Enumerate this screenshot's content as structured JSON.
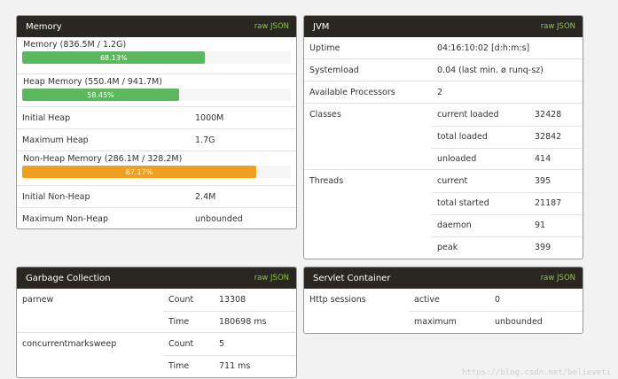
{
  "memory": {
    "title": "Memory",
    "raw": "raw JSON",
    "mem_label": "Memory (836.5M / 1.2G)",
    "mem_pct_text": "68.13%",
    "mem_pct": 68.13,
    "heap_label": "Heap Memory (550.4M / 941.7M)",
    "heap_pct_text": "58.45%",
    "heap_pct": 58.45,
    "initial_heap_label": "Initial Heap",
    "initial_heap": "1000M",
    "max_heap_label": "Maximum Heap",
    "max_heap": "1.7G",
    "nonheap_label": "Non-Heap Memory (286.1M / 328.2M)",
    "nonheap_pct_text": "87.17%",
    "nonheap_pct": 87.17,
    "initial_nonheap_label": "Initial Non-Heap",
    "initial_nonheap": "2.4M",
    "max_nonheap_label": "Maximum Non-Heap",
    "max_nonheap": "unbounded"
  },
  "jvm": {
    "title": "JVM",
    "raw": "raw JSON",
    "uptime_label": "Uptime",
    "uptime": "04:16:10:02 [d:h:m:s]",
    "sysload_label": "Systemload",
    "sysload": "0.04 (last min. ø runq-sz)",
    "procs_label": "Available Processors",
    "procs": "2",
    "classes_label": "Classes",
    "classes": [
      {
        "label": "current loaded",
        "value": "32428"
      },
      {
        "label": "total loaded",
        "value": "32842"
      },
      {
        "label": "unloaded",
        "value": "414"
      }
    ],
    "threads_label": "Threads",
    "threads": [
      {
        "label": "current",
        "value": "395"
      },
      {
        "label": "total started",
        "value": "21187"
      },
      {
        "label": "daemon",
        "value": "91"
      },
      {
        "label": "peak",
        "value": "399"
      }
    ]
  },
  "gc": {
    "title": "Garbage Collection",
    "raw": "raw JSON",
    "collectors": [
      {
        "name": "parnew",
        "count_label": "Count",
        "count": "13308",
        "time_label": "Time",
        "time": "180698 ms"
      },
      {
        "name": "concurrentmarksweep",
        "count_label": "Count",
        "count": "5",
        "time_label": "Time",
        "time": "711 ms"
      }
    ]
  },
  "servlet": {
    "title": "Servlet Container",
    "raw": "raw JSON",
    "sessions_label": "Http sessions",
    "active_label": "active",
    "active": "0",
    "maximum_label": "maximum",
    "maximum": "unbounded"
  },
  "watermark": "https://blog.csdn.net/believeti"
}
